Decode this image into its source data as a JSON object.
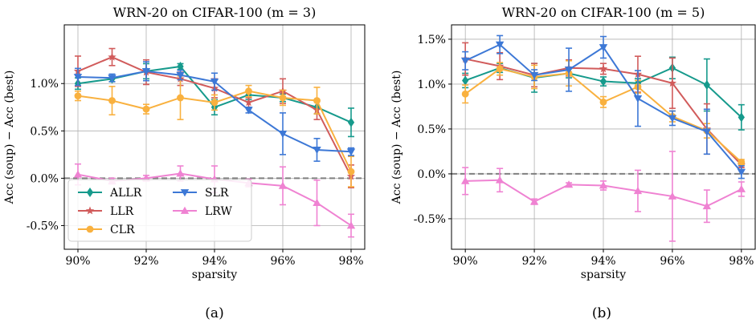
{
  "chart_data": [
    {
      "type": "line",
      "title": "WRN-20 on CIFAR-100 (m = 3)",
      "xlabel": "sparsity",
      "ylabel": "Acc (soup) − Acc (best)",
      "panel_label": "(a)",
      "x": [
        90,
        91,
        92,
        93,
        94,
        95,
        96,
        97,
        98
      ],
      "xticks": [
        90,
        92,
        94,
        96,
        98
      ],
      "xtick_labels": [
        "90%",
        "92%",
        "94%",
        "96%",
        "98%"
      ],
      "xlim": [
        89.6,
        98.4
      ],
      "ylim": [
        -0.75,
        1.62
      ],
      "yticks": [
        -0.5,
        0.0,
        0.5,
        1.0
      ],
      "ytick_labels": [
        "-0.5%",
        "0.0%",
        "0.5%",
        "1.0%"
      ],
      "reference_line": 0.0,
      "grid": true,
      "legend": {
        "placement": "lower-left",
        "columns": 2
      },
      "series": [
        {
          "name": "ALLR",
          "color": "#169a8c",
          "marker": "diamond",
          "values": [
            1.0,
            1.05,
            1.13,
            1.18,
            0.75,
            0.88,
            0.85,
            0.75,
            0.59
          ],
          "errors": [
            0.06,
            0.03,
            0.08,
            0.03,
            0.08,
            0.05,
            0.04,
            0.07,
            0.15
          ]
        },
        {
          "name": "LLR",
          "color": "#d15b5b",
          "marker": "star",
          "values": [
            1.13,
            1.28,
            1.12,
            1.05,
            0.95,
            0.8,
            0.92,
            0.72,
            0.02
          ],
          "errors": [
            0.16,
            0.09,
            0.13,
            0.07,
            0.1,
            0.05,
            0.13,
            0.1,
            0.12
          ]
        },
        {
          "name": "CLR",
          "color": "#f9b13f",
          "marker": "circle",
          "values": [
            0.87,
            0.82,
            0.73,
            0.85,
            0.8,
            0.92,
            0.85,
            0.82,
            0.07
          ],
          "errors": [
            0.05,
            0.15,
            0.05,
            0.23,
            0.08,
            0.06,
            0.08,
            0.14,
            0.16
          ]
        },
        {
          "name": "SLR",
          "color": "#3d78d6",
          "marker": "triangle-down",
          "values": [
            1.07,
            1.06,
            1.13,
            1.09,
            1.02,
            0.72,
            0.47,
            0.3,
            0.28
          ],
          "errors": [
            0.09,
            0.04,
            0.1,
            0.05,
            0.09,
            0.03,
            0.22,
            0.12,
            0.04
          ]
        },
        {
          "name": "LRW",
          "color": "#ef82d2",
          "marker": "triangle-up",
          "values": [
            0.04,
            -0.03,
            0.0,
            0.05,
            -0.01,
            -0.05,
            -0.08,
            -0.26,
            -0.5
          ],
          "errors": [
            0.11,
            0.03,
            0.03,
            0.08,
            0.14,
            0.04,
            0.2,
            0.24,
            0.12
          ]
        }
      ]
    },
    {
      "type": "line",
      "title": "WRN-20 on CIFAR-100 (m = 5)",
      "xlabel": "sparsity",
      "ylabel": "Acc (soup) − Acc (best)",
      "panel_label": "(b)",
      "x": [
        90,
        91,
        92,
        93,
        94,
        95,
        96,
        97,
        98
      ],
      "xticks": [
        90,
        92,
        94,
        96,
        98
      ],
      "xtick_labels": [
        "90%",
        "92%",
        "94%",
        "96%",
        "98%"
      ],
      "xlim": [
        89.6,
        98.4
      ],
      "ylim": [
        -0.84,
        1.66
      ],
      "yticks": [
        -0.5,
        0.0,
        0.5,
        1.0,
        1.5
      ],
      "ytick_labels": [
        "-0.5%",
        "0.0%",
        "0.5%",
        "1.0%",
        "1.5%"
      ],
      "reference_line": 0.0,
      "grid": true,
      "series": [
        {
          "name": "ALLR",
          "color": "#169a8c",
          "marker": "diamond",
          "values": [
            1.04,
            1.18,
            1.07,
            1.12,
            1.03,
            1.01,
            1.18,
            0.99,
            0.63
          ],
          "errors": [
            0.08,
            0.05,
            0.16,
            0.05,
            0.05,
            0.05,
            0.12,
            0.29,
            0.14
          ]
        },
        {
          "name": "LLR",
          "color": "#d15b5b",
          "marker": "star",
          "values": [
            1.28,
            1.2,
            1.1,
            1.18,
            1.17,
            1.11,
            1.01,
            0.5,
            0.1
          ],
          "errors": [
            0.18,
            0.15,
            0.13,
            0.09,
            0.06,
            0.2,
            0.28,
            0.28,
            0.03
          ]
        },
        {
          "name": "CLR",
          "color": "#f9b13f",
          "marker": "circle",
          "values": [
            0.89,
            1.17,
            1.08,
            1.12,
            0.8,
            0.97,
            0.64,
            0.48,
            0.13
          ],
          "errors": [
            0.1,
            0.07,
            0.13,
            0.14,
            0.06,
            0.07,
            0.06,
            0.08,
            0.03
          ]
        },
        {
          "name": "SLR",
          "color": "#3d78d6",
          "marker": "triangle-down",
          "values": [
            1.26,
            1.44,
            1.1,
            1.16,
            1.41,
            0.84,
            0.62,
            0.47,
            0.02
          ],
          "errors": [
            0.1,
            0.1,
            0.06,
            0.24,
            0.12,
            0.31,
            0.08,
            0.25,
            0.07
          ]
        },
        {
          "name": "LRW",
          "color": "#ef82d2",
          "marker": "triangle-up",
          "values": [
            -0.08,
            -0.07,
            -0.31,
            -0.12,
            -0.13,
            -0.19,
            -0.25,
            -0.36,
            -0.17
          ],
          "errors": [
            0.15,
            0.13,
            0.03,
            0.02,
            0.05,
            0.23,
            0.5,
            0.18,
            0.08
          ]
        }
      ]
    }
  ]
}
